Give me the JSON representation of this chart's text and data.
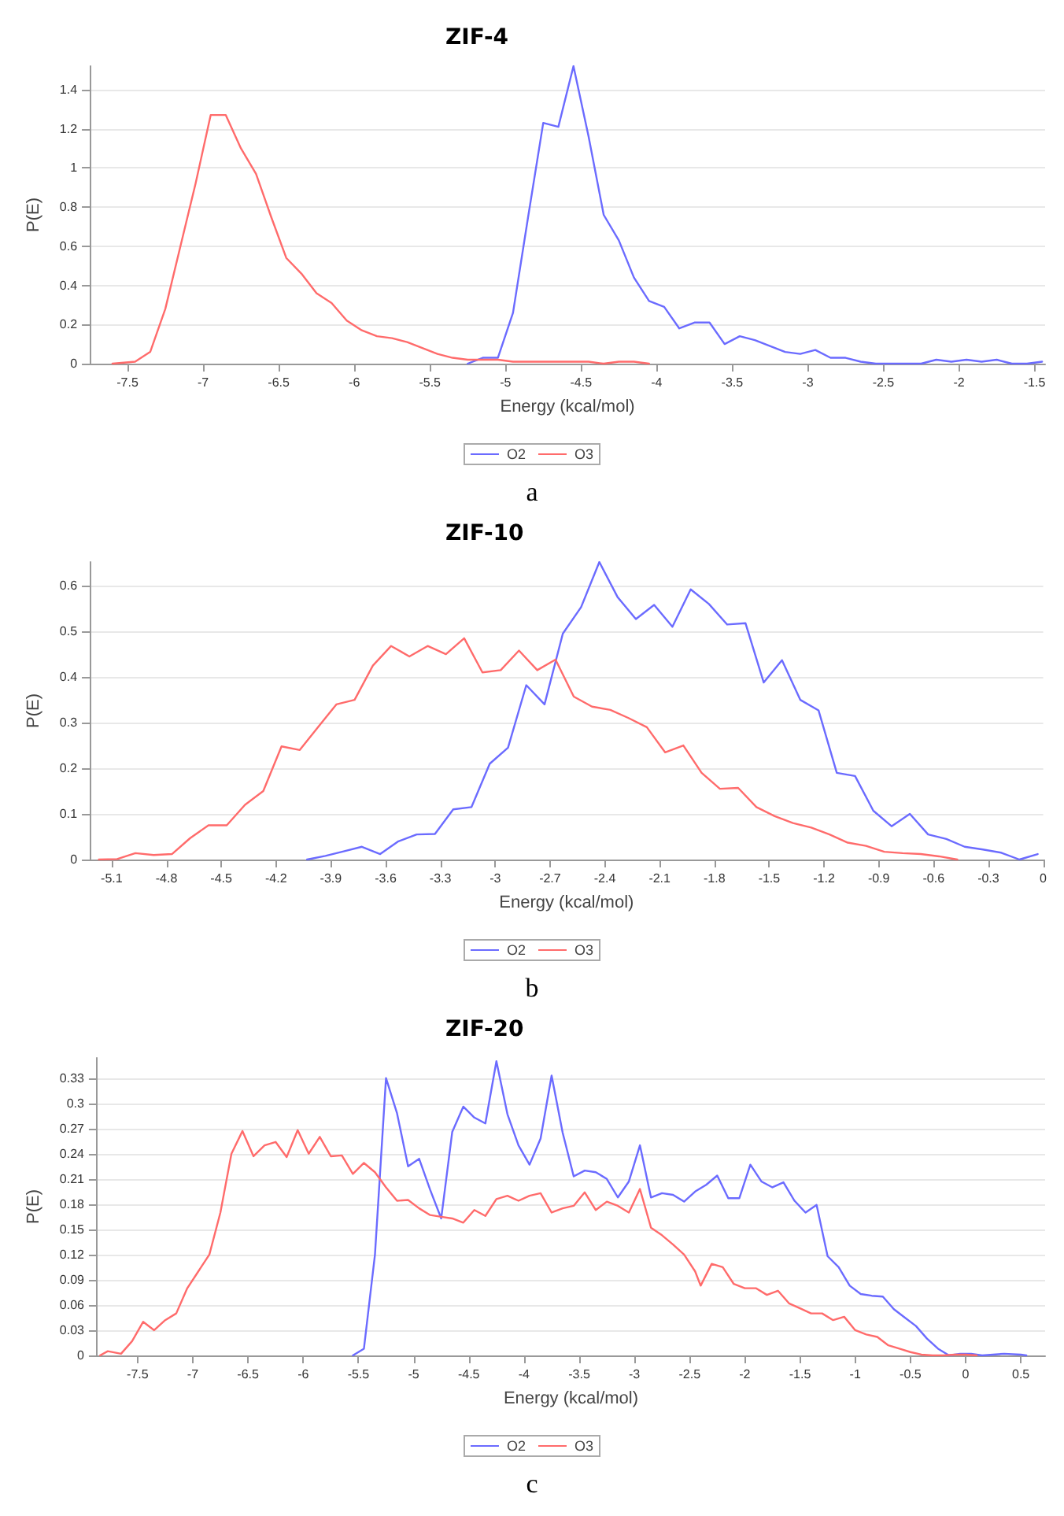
{
  "chart_data": [
    {
      "type": "line",
      "title": "ZIF-4",
      "xlabel": "Energy (kcal/mol)",
      "ylabel": "P(E)",
      "annotations": [
        "a"
      ],
      "xlim": [
        -7.75,
        -1.43
      ],
      "xticks": [
        -7.5,
        -7,
        -6.5,
        -6,
        -5.5,
        -5,
        -4.5,
        -4,
        -3.5,
        -3,
        -2.5,
        -2,
        -1.5
      ],
      "ylim": [
        0,
        1.52
      ],
      "yticks": [
        0,
        0.2,
        0.4,
        0.6,
        0.8,
        1,
        1.2,
        1.4
      ],
      "grid": "y",
      "legend": "bottom",
      "marker": "none",
      "line_style": "solid",
      "series": [
        {
          "name": "O2",
          "color": "#6b6bff",
          "x": [
            -5.25,
            -5.15,
            -5.05,
            -4.95,
            -4.85,
            -4.75,
            -4.65,
            -4.55,
            -4.45,
            -4.35,
            -4.25,
            -4.15,
            -4.05,
            -3.95,
            -3.85,
            -3.75,
            -3.65,
            -3.55,
            -3.45,
            -3.35,
            -3.25,
            -3.15,
            -3.05,
            -2.95,
            -2.85,
            -2.75,
            -2.65,
            -2.55,
            -2.25,
            -2.15,
            -2.05,
            -1.95,
            -1.85,
            -1.75,
            -1.65,
            -1.55,
            -1.45
          ],
          "values": [
            0,
            0.03,
            0.03,
            0.26,
            0.75,
            1.23,
            1.21,
            1.52,
            1.16,
            0.76,
            0.63,
            0.44,
            0.32,
            0.29,
            0.18,
            0.21,
            0.21,
            0.1,
            0.14,
            0.12,
            0.09,
            0.06,
            0.05,
            0.07,
            0.03,
            0.03,
            0.01,
            0,
            0,
            0.02,
            0.01,
            0.02,
            0.01,
            0.02,
            0,
            0,
            0.01
          ]
        },
        {
          "name": "O3",
          "color": "#ff6b6b",
          "x": [
            -7.6,
            -7.45,
            -7.35,
            -7.25,
            -7.15,
            -7.05,
            -6.95,
            -6.85,
            -6.75,
            -6.65,
            -6.55,
            -6.45,
            -6.35,
            -6.25,
            -6.15,
            -6.05,
            -5.95,
            -5.85,
            -5.75,
            -5.65,
            -5.55,
            -5.45,
            -5.35,
            -5.25,
            -5.15,
            -5.05,
            -4.95,
            -4.85,
            -4.75,
            -4.65,
            -4.55,
            -4.45,
            -4.35,
            -4.25,
            -4.15,
            -4.05
          ],
          "values": [
            0,
            0.01,
            0.06,
            0.28,
            0.6,
            0.92,
            1.27,
            1.27,
            1.1,
            0.97,
            0.75,
            0.54,
            0.46,
            0.36,
            0.31,
            0.22,
            0.17,
            0.14,
            0.13,
            0.11,
            0.08,
            0.05,
            0.03,
            0.02,
            0.02,
            0.02,
            0.01,
            0.01,
            0.01,
            0.01,
            0.01,
            0.01,
            0,
            0.01,
            0.01,
            0
          ]
        }
      ]
    },
    {
      "type": "line",
      "title": "ZIF-10",
      "xlabel": "Energy (kcal/mol)",
      "ylabel": "P(E)",
      "annotations": [
        "b"
      ],
      "xlim": [
        -5.22,
        0
      ],
      "xticks": [
        -5.1,
        -4.8,
        -4.5,
        -4.2,
        -3.9,
        -3.6,
        -3.3,
        -3,
        -2.7,
        -2.4,
        -2.1,
        -1.8,
        -1.5,
        -1.2,
        -0.9,
        -0.6,
        -0.3,
        0
      ],
      "ylim": [
        0,
        0.652
      ],
      "yticks": [
        0,
        0.1,
        0.2,
        0.3,
        0.4,
        0.5,
        0.6
      ],
      "grid": "y",
      "legend": "bottom",
      "marker": "none",
      "line_style": "solid",
      "series": [
        {
          "name": "O2",
          "color": "#6b6bff",
          "x": [
            -4.03,
            -3.93,
            -3.83,
            -3.73,
            -3.63,
            -3.53,
            -3.43,
            -3.33,
            -3.23,
            -3.13,
            -3.03,
            -2.93,
            -2.83,
            -2.73,
            -2.63,
            -2.53,
            -2.43,
            -2.33,
            -2.23,
            -2.13,
            -2.03,
            -1.93,
            -1.83,
            -1.73,
            -1.63,
            -1.53,
            -1.43,
            -1.33,
            -1.23,
            -1.13,
            -1.03,
            -0.93,
            -0.83,
            -0.73,
            -0.63,
            -0.53,
            -0.43,
            -0.33,
            -0.23,
            -0.13,
            -0.03
          ],
          "values": [
            0,
            0.008,
            0.018,
            0.028,
            0.012,
            0.04,
            0.055,
            0.056,
            0.11,
            0.115,
            0.21,
            0.245,
            0.382,
            0.34,
            0.495,
            0.553,
            0.652,
            0.575,
            0.527,
            0.558,
            0.51,
            0.592,
            0.56,
            0.515,
            0.518,
            0.388,
            0.437,
            0.35,
            0.327,
            0.19,
            0.183,
            0.107,
            0.073,
            0.1,
            0.055,
            0.045,
            0.028,
            0.022,
            0.015,
            0,
            0.012
          ]
        },
        {
          "name": "O3",
          "color": "#ff6b6b",
          "x": [
            -5.17,
            -5.07,
            -4.97,
            -4.87,
            -4.77,
            -4.67,
            -4.57,
            -4.47,
            -4.37,
            -4.27,
            -4.17,
            -4.07,
            -3.97,
            -3.87,
            -3.77,
            -3.67,
            -3.57,
            -3.47,
            -3.37,
            -3.27,
            -3.17,
            -3.07,
            -2.97,
            -2.87,
            -2.77,
            -2.67,
            -2.57,
            -2.47,
            -2.37,
            -2.27,
            -2.17,
            -2.07,
            -1.97,
            -1.87,
            -1.77,
            -1.67,
            -1.57,
            -1.47,
            -1.37,
            -1.27,
            -1.17,
            -1.07,
            -0.97,
            -0.87,
            -0.77,
            -0.67,
            -0.57,
            -0.47
          ],
          "values": [
            0,
            0.001,
            0.014,
            0.01,
            0.012,
            0.047,
            0.075,
            0.075,
            0.12,
            0.15,
            0.248,
            0.24,
            0.29,
            0.34,
            0.35,
            0.425,
            0.468,
            0.445,
            0.468,
            0.45,
            0.485,
            0.41,
            0.415,
            0.458,
            0.415,
            0.438,
            0.357,
            0.335,
            0.328,
            0.31,
            0.29,
            0.235,
            0.25,
            0.19,
            0.155,
            0.157,
            0.115,
            0.095,
            0.08,
            0.07,
            0.055,
            0.037,
            0.03,
            0.017,
            0.014,
            0.012,
            0.007,
            0
          ]
        }
      ]
    },
    {
      "type": "line",
      "title": "ZIF-20",
      "xlabel": "Energy (kcal/mol)",
      "ylabel": "P(E)",
      "annotations": [
        "c"
      ],
      "xlim": [
        -7.87,
        0.72
      ],
      "xticks": [
        -7.5,
        -7,
        -6.5,
        -6,
        -5.5,
        -5,
        -4.5,
        -4,
        -3.5,
        -3,
        -2.5,
        -2,
        -1.5,
        -1,
        -0.5,
        0,
        0.5
      ],
      "ylim": [
        0,
        0.354
      ],
      "yticks": [
        0,
        0.03,
        0.06,
        0.09,
        0.12,
        0.15,
        0.18,
        0.21,
        0.24,
        0.27,
        0.3,
        0.33
      ],
      "grid": "y",
      "legend": "bottom",
      "marker": "none",
      "line_style": "solid",
      "series": [
        {
          "name": "O2",
          "color": "#6b6bff",
          "x": [
            -5.55,
            -5.45,
            -5.35,
            -5.25,
            -5.15,
            -5.05,
            -4.95,
            -4.85,
            -4.75,
            -4.65,
            -4.55,
            -4.45,
            -4.35,
            -4.25,
            -4.15,
            -4.05,
            -3.95,
            -3.85,
            -3.75,
            -3.65,
            -3.55,
            -3.45,
            -3.35,
            -3.25,
            -3.15,
            -3.05,
            -2.95,
            -2.85,
            -2.75,
            -2.65,
            -2.55,
            -2.45,
            -2.35,
            -2.25,
            -2.15,
            -2.05,
            -1.95,
            -1.85,
            -1.75,
            -1.65,
            -1.55,
            -1.45,
            -1.35,
            -1.25,
            -1.15,
            -1.05,
            -0.95,
            -0.85,
            -0.75,
            -0.65,
            -0.55,
            -0.45,
            -0.35,
            -0.25,
            -0.15,
            -0.05,
            0.05,
            0.15,
            0.35,
            0.5,
            0.55
          ],
          "values": [
            0,
            0.008,
            0.12,
            0.33,
            0.288,
            0.225,
            0.234,
            0.197,
            0.163,
            0.266,
            0.296,
            0.283,
            0.276,
            0.35,
            0.287,
            0.25,
            0.227,
            0.258,
            0.333,
            0.265,
            0.213,
            0.22,
            0.218,
            0.21,
            0.188,
            0.207,
            0.25,
            0.188,
            0.193,
            0.191,
            0.183,
            0.195,
            0.203,
            0.214,
            0.187,
            0.187,
            0.227,
            0.207,
            0.2,
            0.206,
            0.184,
            0.17,
            0.179,
            0.118,
            0.105,
            0.083,
            0.073,
            0.071,
            0.07,
            0.055,
            0.045,
            0.035,
            0.02,
            0.008,
            0,
            0.002,
            0.002,
            0,
            0.002,
            0.001,
            0
          ]
        },
        {
          "name": "O3",
          "color": "#ff6b6b",
          "x": [
            -7.84,
            -7.77,
            -7.65,
            -7.55,
            -7.45,
            -7.35,
            -7.25,
            -7.15,
            -7.05,
            -6.95,
            -6.85,
            -6.75,
            -6.65,
            -6.55,
            -6.45,
            -6.35,
            -6.25,
            -6.15,
            -6.05,
            -5.95,
            -5.85,
            -5.75,
            -5.65,
            -5.55,
            -5.45,
            -5.35,
            -5.25,
            -5.15,
            -5.05,
            -4.95,
            -4.85,
            -4.75,
            -4.65,
            -4.55,
            -4.45,
            -4.35,
            -4.25,
            -4.15,
            -4.05,
            -3.95,
            -3.85,
            -3.75,
            -3.65,
            -3.55,
            -3.45,
            -3.35,
            -3.25,
            -3.15,
            -3.05,
            -2.95,
            -2.85,
            -2.75,
            -2.65,
            -2.55,
            -2.45,
            -2.4,
            -2.3,
            -2.2,
            -2.1,
            -2,
            -1.9,
            -1.8,
            -1.7,
            -1.6,
            -1.5,
            -1.4,
            -1.3,
            -1.2,
            -1.1,
            -1,
            -0.9,
            -0.8,
            -0.7,
            -0.6,
            -0.5,
            -0.4,
            -0.3,
            -0.2,
            -0.1,
            0,
            0.1
          ],
          "values": [
            0,
            0.005,
            0.002,
            0.017,
            0.04,
            0.03,
            0.042,
            0.05,
            0.08,
            0.1,
            0.12,
            0.17,
            0.24,
            0.267,
            0.237,
            0.25,
            0.254,
            0.236,
            0.268,
            0.24,
            0.26,
            0.237,
            0.238,
            0.216,
            0.229,
            0.218,
            0.2,
            0.184,
            0.185,
            0.175,
            0.167,
            0.165,
            0.163,
            0.158,
            0.173,
            0.166,
            0.186,
            0.19,
            0.184,
            0.19,
            0.193,
            0.17,
            0.175,
            0.178,
            0.194,
            0.173,
            0.183,
            0.178,
            0.17,
            0.198,
            0.152,
            0.143,
            0.132,
            0.12,
            0.1,
            0.083,
            0.109,
            0.105,
            0.085,
            0.08,
            0.08,
            0.072,
            0.077,
            0.062,
            0.056,
            0.05,
            0.05,
            0.042,
            0.046,
            0.03,
            0.025,
            0.022,
            0.012,
            0.008,
            0.004,
            0.001,
            0,
            0,
            0.001,
            0.001,
            0
          ]
        }
      ]
    }
  ]
}
